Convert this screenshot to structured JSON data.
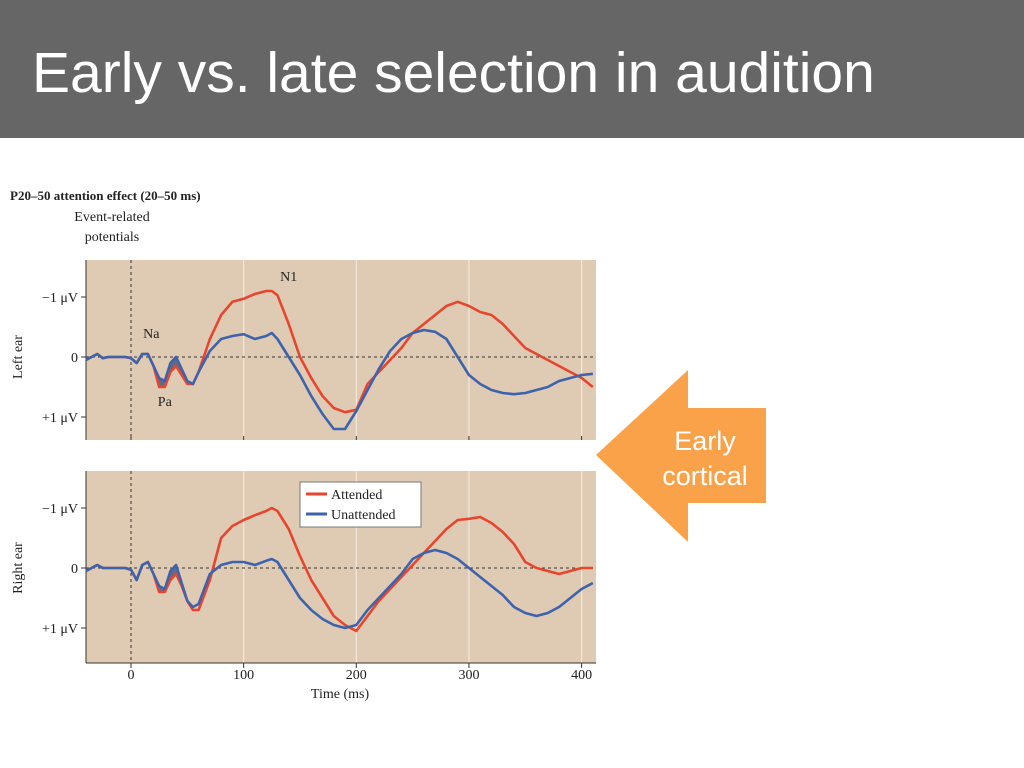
{
  "slide": {
    "title": "Early vs. late selection in audition"
  },
  "callout": {
    "line1": "Early",
    "line2": "cortical",
    "color": "#f9a24a"
  },
  "colors": {
    "panel_bg": "#dfcbb3",
    "attended": "#e8452f",
    "unattended": "#3e63ad",
    "gridline": "#f2e8da"
  },
  "chart_data": {
    "type": "line",
    "title": "P20–50 attention effect (20–50 ms)",
    "subtitle_line1": "Event-related",
    "subtitle_line2": "potentials",
    "xlabel": "Time (ms)",
    "x_ticks": [
      "0",
      "100",
      "200",
      "300",
      "400"
    ],
    "xlim": [
      -40,
      412
    ],
    "ylim": [
      -1.65,
      1.35
    ],
    "y_inverted": true,
    "y_tick_labels": [
      "−1 μV",
      "0",
      "+1 μV"
    ],
    "legend": {
      "position": "top-center",
      "entries": [
        "Attended",
        "Unattended"
      ]
    },
    "panels": [
      {
        "name": "Left ear",
        "annotations": [
          {
            "text": "Na",
            "x": 18,
            "y": -0.32
          },
          {
            "text": "Pa",
            "x": 30,
            "y": 0.82
          },
          {
            "text": "N1",
            "x": 140,
            "y": -1.27
          }
        ],
        "series": [
          {
            "name": "Attended",
            "x": [
              -40,
              -35,
              -30,
              -25,
              -20,
              -15,
              -10,
              -5,
              0,
              5,
              10,
              15,
              20,
              25,
              30,
              35,
              40,
              45,
              50,
              55,
              60,
              70,
              80,
              90,
              100,
              110,
              120,
              125,
              130,
              140,
              150,
              160,
              170,
              180,
              190,
              200,
              210,
              220,
              230,
              240,
              250,
              260,
              270,
              280,
              290,
              300,
              310,
              320,
              330,
              340,
              350,
              360,
              370,
              380,
              390,
              400,
              410
            ],
            "y": [
              0.05,
              0.0,
              -0.05,
              0.02,
              0.0,
              0.0,
              0.0,
              0.0,
              0.02,
              0.1,
              -0.05,
              -0.05,
              0.15,
              0.5,
              0.5,
              0.25,
              0.15,
              0.3,
              0.45,
              0.45,
              0.25,
              -0.3,
              -0.7,
              -0.92,
              -0.97,
              -1.05,
              -1.1,
              -1.1,
              -1.03,
              -0.55,
              -0.0,
              0.35,
              0.65,
              0.85,
              0.92,
              0.88,
              0.45,
              0.25,
              0.05,
              -0.15,
              -0.4,
              -0.55,
              -0.7,
              -0.85,
              -0.92,
              -0.85,
              -0.75,
              -0.7,
              -0.55,
              -0.35,
              -0.15,
              -0.05,
              0.05,
              0.15,
              0.25,
              0.35,
              0.5
            ]
          },
          {
            "name": "Unattended",
            "x": [
              -40,
              -35,
              -30,
              -25,
              -20,
              -15,
              -10,
              -5,
              0,
              5,
              10,
              15,
              20,
              25,
              30,
              35,
              40,
              45,
              50,
              55,
              60,
              70,
              80,
              90,
              100,
              110,
              120,
              125,
              130,
              140,
              150,
              160,
              170,
              180,
              190,
              200,
              210,
              220,
              230,
              240,
              250,
              260,
              270,
              280,
              290,
              300,
              310,
              320,
              330,
              340,
              350,
              360,
              370,
              380,
              390,
              400,
              410
            ],
            "y": [
              0.05,
              0.0,
              -0.05,
              0.02,
              0.0,
              0.0,
              0.0,
              0.0,
              0.02,
              0.1,
              -0.05,
              -0.05,
              0.15,
              0.35,
              0.4,
              0.1,
              0.0,
              0.2,
              0.4,
              0.45,
              0.25,
              -0.1,
              -0.3,
              -0.35,
              -0.38,
              -0.3,
              -0.35,
              -0.4,
              -0.3,
              -0.0,
              0.3,
              0.65,
              0.95,
              1.2,
              1.2,
              0.9,
              0.55,
              0.2,
              -0.1,
              -0.3,
              -0.4,
              -0.45,
              -0.42,
              -0.3,
              -0.0,
              0.3,
              0.45,
              0.55,
              0.6,
              0.62,
              0.6,
              0.55,
              0.5,
              0.4,
              0.35,
              0.3,
              0.28
            ]
          }
        ]
      },
      {
        "name": "Right ear",
        "annotations": [],
        "series": [
          {
            "name": "Attended",
            "x": [
              -40,
              -35,
              -30,
              -25,
              -20,
              -15,
              -10,
              -5,
              0,
              5,
              10,
              15,
              20,
              25,
              30,
              35,
              40,
              45,
              50,
              55,
              60,
              70,
              80,
              90,
              100,
              110,
              120,
              125,
              130,
              140,
              150,
              160,
              170,
              180,
              190,
              200,
              210,
              220,
              230,
              240,
              250,
              260,
              270,
              280,
              290,
              300,
              310,
              320,
              330,
              340,
              350,
              360,
              370,
              380,
              390,
              400,
              410
            ],
            "y": [
              0.05,
              0.0,
              -0.05,
              0.0,
              0.0,
              0.0,
              0.0,
              0.0,
              0.03,
              0.2,
              -0.05,
              -0.1,
              0.1,
              0.4,
              0.4,
              0.2,
              0.1,
              0.3,
              0.55,
              0.7,
              0.7,
              0.2,
              -0.5,
              -0.7,
              -0.8,
              -0.88,
              -0.95,
              -1.0,
              -0.95,
              -0.65,
              -0.2,
              0.2,
              0.5,
              0.8,
              0.95,
              1.05,
              0.8,
              0.55,
              0.35,
              0.15,
              -0.05,
              -0.25,
              -0.45,
              -0.65,
              -0.8,
              -0.82,
              -0.85,
              -0.75,
              -0.6,
              -0.4,
              -0.1,
              0.0,
              0.05,
              0.1,
              0.05,
              0.0,
              0.0
            ]
          },
          {
            "name": "Unattended",
            "x": [
              -40,
              -35,
              -30,
              -25,
              -20,
              -15,
              -10,
              -5,
              0,
              5,
              10,
              15,
              20,
              25,
              30,
              35,
              40,
              45,
              50,
              55,
              60,
              70,
              80,
              90,
              100,
              110,
              120,
              125,
              130,
              140,
              150,
              160,
              170,
              180,
              190,
              200,
              210,
              220,
              230,
              240,
              250,
              260,
              270,
              280,
              290,
              300,
              310,
              320,
              330,
              340,
              350,
              360,
              370,
              380,
              390,
              400,
              410
            ],
            "y": [
              0.05,
              0.0,
              -0.05,
              0.0,
              0.0,
              0.0,
              0.0,
              0.0,
              0.03,
              0.2,
              -0.05,
              -0.1,
              0.1,
              0.3,
              0.35,
              0.05,
              -0.05,
              0.25,
              0.55,
              0.65,
              0.6,
              0.1,
              -0.05,
              -0.1,
              -0.1,
              -0.05,
              -0.12,
              -0.15,
              -0.1,
              0.2,
              0.5,
              0.7,
              0.85,
              0.95,
              1.0,
              0.95,
              0.7,
              0.5,
              0.3,
              0.1,
              -0.15,
              -0.25,
              -0.3,
              -0.25,
              -0.15,
              -0.0,
              0.15,
              0.3,
              0.45,
              0.65,
              0.75,
              0.8,
              0.75,
              0.65,
              0.5,
              0.35,
              0.25
            ]
          }
        ]
      }
    ]
  }
}
